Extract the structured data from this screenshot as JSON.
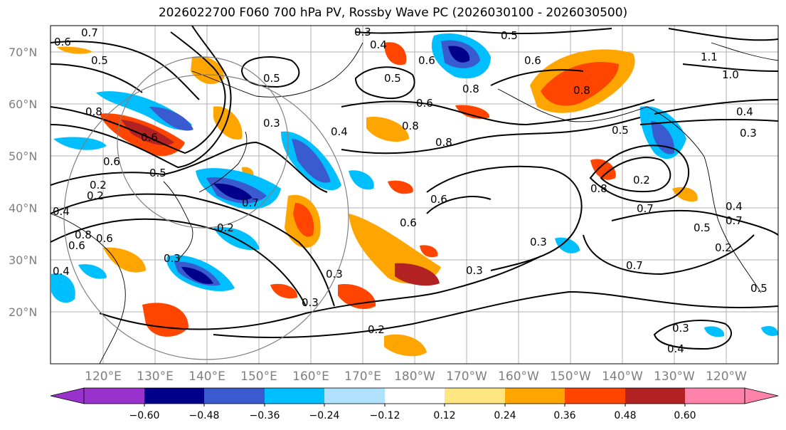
{
  "title": "2026022700 F060 700 hPa PV, Rossby Wave PC (2026030100 - 2026030500)",
  "lat_labels": [
    "70°N",
    "60°N",
    "50°N",
    "40°N",
    "30°N",
    "20°N"
  ],
  "lon_labels": [
    "120°E",
    "130°E",
    "140°E",
    "150°E",
    "160°E",
    "170°E",
    "180°W",
    "170°W",
    "160°W",
    "150°W",
    "140°W",
    "130°W",
    "120°W"
  ],
  "colorbar": {
    "ticks": [
      "−0.60",
      "−0.48",
      "−0.36",
      "−0.24",
      "−0.12",
      "0.12",
      "0.24",
      "0.36",
      "0.48",
      "0.60"
    ],
    "colors": [
      "#9932cc",
      "#00008b",
      "#3a5bcf",
      "#00bfff",
      "#b0e2ff",
      "#ffffff",
      "#ffe680",
      "#ffa500",
      "#ff4500",
      "#b22222",
      "#ff82ab"
    ]
  },
  "contour_labels": [
    "0.7",
    "0.6",
    "0.5",
    "0.3",
    "0.4",
    "0.5",
    "0.6",
    "0.5",
    "0.6",
    "0.8",
    "0.5",
    "1.1",
    "1.0",
    "0.4",
    "0.3",
    "0.8",
    "0.6",
    "0.5",
    "0.6",
    "0.5",
    "0.8",
    "0.7",
    "0.2",
    "0.3",
    "0.4",
    "0.6",
    "0.8",
    "0.6",
    "0.8",
    "0.6",
    "0.8",
    "0.7",
    "0.2",
    "0.3",
    "0.3",
    "0.5",
    "0.4",
    "0.2",
    "0.5",
    "0.3",
    "0.6",
    "0.3",
    "0.3",
    "0.2",
    "0.4",
    "0.7",
    "0.7",
    "0.2",
    "0.3",
    "0.4",
    "0.2",
    "0.4",
    "0.8",
    "0.6"
  ]
}
